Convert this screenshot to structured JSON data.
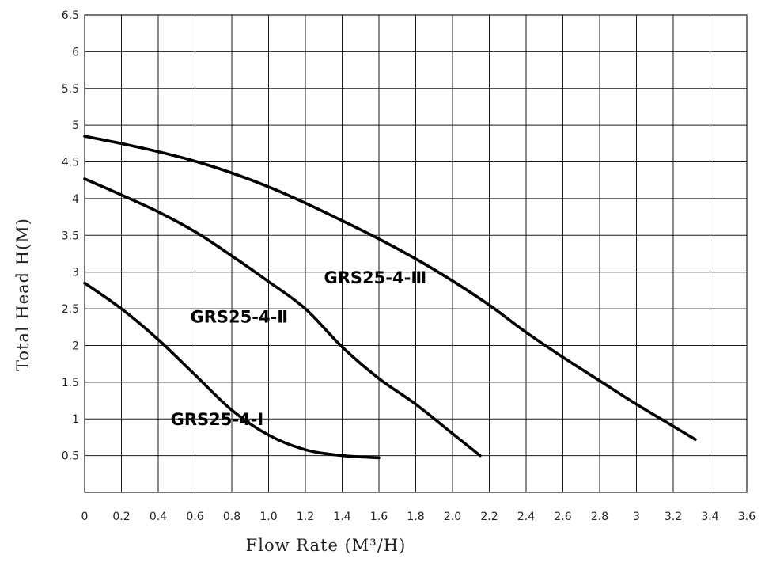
{
  "chart_data": {
    "type": "line",
    "xlabel": "Flow Rate (M³/H)",
    "ylabel": "Total Head H(M)",
    "xlim": [
      0,
      3.6
    ],
    "ylim": [
      0,
      6.5
    ],
    "x_ticks": [
      "0",
      "0.2",
      "0.4",
      "0.6",
      "0.8",
      "1.0",
      "1.2",
      "1.4",
      "1.6",
      "1.8",
      "2.0",
      "2.2",
      "2.4",
      "2.6",
      "2.8",
      "3",
      "3.2",
      "3.4",
      "3.6"
    ],
    "y_ticks": [
      "0.5",
      "1",
      "1.5",
      "2",
      "2.5",
      "3",
      "3.5",
      "4",
      "4.5",
      "5",
      "5.5",
      "6",
      "6.5"
    ],
    "grid": true,
    "series": [
      {
        "name": "GRS25-4-I",
        "x": [
          0,
          0.2,
          0.4,
          0.6,
          0.8,
          1.0,
          1.2,
          1.4,
          1.6
        ],
        "y": [
          2.85,
          2.5,
          2.08,
          1.6,
          1.12,
          0.78,
          0.58,
          0.5,
          0.47
        ]
      },
      {
        "name": "GRS25-4-Ⅱ",
        "x": [
          0,
          0.2,
          0.4,
          0.6,
          0.8,
          1.0,
          1.2,
          1.4,
          1.6,
          1.8,
          2.0,
          2.15
        ],
        "y": [
          4.27,
          4.05,
          3.82,
          3.55,
          3.22,
          2.87,
          2.5,
          1.98,
          1.55,
          1.2,
          0.8,
          0.5
        ]
      },
      {
        "name": "GRS25-4-Ⅲ",
        "x": [
          0,
          0.2,
          0.4,
          0.6,
          0.8,
          1.0,
          1.2,
          1.4,
          1.6,
          1.8,
          2.0,
          2.2,
          2.4,
          2.6,
          2.8,
          3.0,
          3.2,
          3.32
        ],
        "y": [
          4.85,
          4.75,
          4.64,
          4.51,
          4.35,
          4.16,
          3.94,
          3.7,
          3.45,
          3.18,
          2.88,
          2.55,
          2.18,
          1.84,
          1.52,
          1.2,
          0.9,
          0.72
        ]
      }
    ],
    "annotations": [
      {
        "text": "GRS25-4-I",
        "x": 0.72,
        "y": 1.0
      },
      {
        "text": "GRS25-4-Ⅱ",
        "x": 0.84,
        "y": 2.4
      },
      {
        "text": "GRS25-4-Ⅲ",
        "x": 1.58,
        "y": 2.93
      }
    ]
  }
}
